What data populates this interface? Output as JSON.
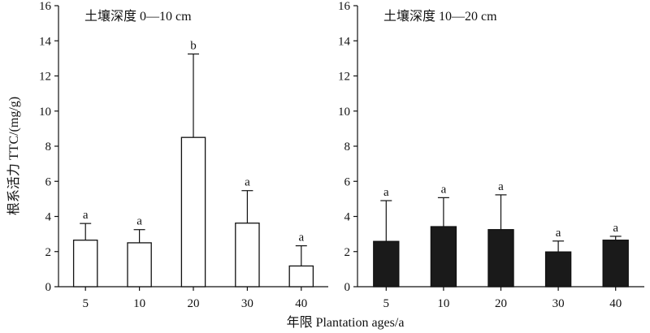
{
  "chart_data": [
    {
      "type": "bar",
      "title": "土壤深度 0—10 cm",
      "categories": [
        "5",
        "10",
        "20",
        "30",
        "40"
      ],
      "values": [
        2.65,
        2.5,
        8.5,
        3.62,
        1.18
      ],
      "errors": [
        0.95,
        0.75,
        4.75,
        1.85,
        1.15
      ],
      "significance": [
        "a",
        "a",
        "b",
        "a",
        "a"
      ],
      "bar_fill": "#ffffff",
      "ylim": [
        0,
        16
      ],
      "yticks": [
        0,
        2,
        4,
        6,
        8,
        10,
        12,
        14,
        16
      ]
    },
    {
      "type": "bar",
      "title": "土壤深度 10—20 cm",
      "categories": [
        "5",
        "10",
        "20",
        "30",
        "40"
      ],
      "values": [
        2.58,
        3.42,
        3.25,
        1.98,
        2.65
      ],
      "errors": [
        2.32,
        1.65,
        1.98,
        0.62,
        0.22
      ],
      "significance": [
        "a",
        "a",
        "a",
        "a",
        "a"
      ],
      "bar_fill": "#1a1a1a",
      "ylim": [
        0,
        16
      ],
      "yticks": [
        0,
        2,
        4,
        6,
        8,
        10,
        12,
        14,
        16
      ]
    }
  ],
  "ylabel": "根系活力 TTC/(mg/g)",
  "xlabel": "年限 Plantation ages/a"
}
